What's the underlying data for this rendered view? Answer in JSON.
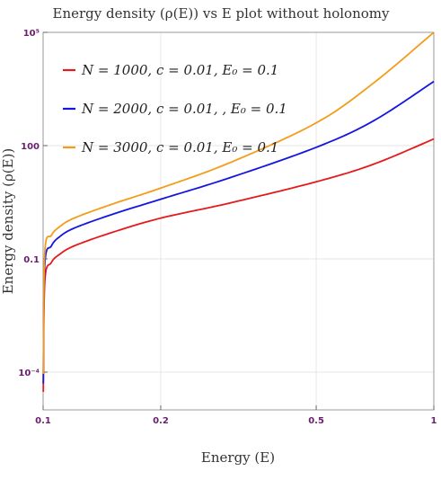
{
  "chart_data": {
    "type": "line",
    "title": "Energy density  (ρ(E)) vs E plot without holonomy",
    "xlabel": "Energy  (E)",
    "ylabel": "Energy density  (ρ(E))",
    "x_scale": "log",
    "y_scale": "log",
    "xlim": [
      0.1,
      1.0
    ],
    "ylim": [
      1e-05,
      100000
    ],
    "grid": true,
    "legend_position": "top-left",
    "x_ticks": [
      {
        "value": 0.1,
        "label": "0.1"
      },
      {
        "value": 0.2,
        "label": "0.2"
      },
      {
        "value": 0.5,
        "label": "0.5"
      },
      {
        "value": 1.0,
        "label": "1"
      }
    ],
    "y_ticks": [
      {
        "value": 0.0001,
        "label": "10⁻⁴"
      },
      {
        "value": 0.1,
        "label": "0.1"
      },
      {
        "value": 100,
        "label": "100"
      },
      {
        "value": 100000,
        "label": "10⁵"
      }
    ],
    "series": [
      {
        "name": "N = 1000, c = 0.01, E₀ = 0.1",
        "color": "#e41a1c",
        "x": [
          0.1001,
          0.101,
          0.105,
          0.11,
          0.12,
          0.15,
          0.2,
          0.3,
          0.5,
          0.7,
          1.0
        ],
        "y": [
          3e-05,
          0.025,
          0.08,
          0.13,
          0.22,
          0.5,
          1.2,
          3.0,
          11,
          32,
          150
        ]
      },
      {
        "name": "N = 2000, c = 0.01, , E₀ = 0.1",
        "color": "#1515e0",
        "x": [
          0.1001,
          0.101,
          0.105,
          0.11,
          0.12,
          0.15,
          0.2,
          0.3,
          0.5,
          0.7,
          1.0
        ],
        "y": [
          5e-05,
          0.07,
          0.22,
          0.38,
          0.65,
          1.5,
          3.8,
          14,
          90,
          450,
          5000
        ]
      },
      {
        "name": "N = 3000, c = 0.01, E₀ = 0.1",
        "color": "#f39c1a",
        "x": [
          0.1001,
          0.101,
          0.105,
          0.11,
          0.12,
          0.15,
          0.2,
          0.3,
          0.5,
          0.7,
          1.0
        ],
        "y": [
          9e-05,
          0.15,
          0.42,
          0.7,
          1.2,
          2.8,
          7.5,
          35,
          400,
          4500,
          100000
        ]
      }
    ]
  }
}
